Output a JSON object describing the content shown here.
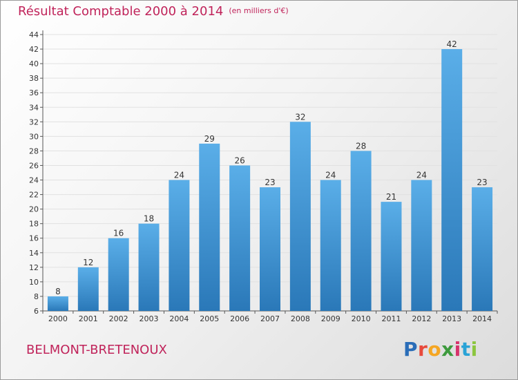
{
  "header": {
    "title": "Résultat Comptable 2000 à 2014",
    "subtitle": "(en milliers d'€)"
  },
  "footer": {
    "commune": "BELMONT-BRETENOUX",
    "logo": [
      "P",
      "r",
      "o",
      "x",
      "i",
      "t",
      "i"
    ]
  },
  "colors": {
    "bar_top": "#5aaee8",
    "bar_bottom": "#2a78b8",
    "title": "#c0235a"
  },
  "chart_data": {
    "type": "bar",
    "title": "Résultat Comptable 2000 à 2014",
    "xlabel": "",
    "ylabel": "",
    "categories": [
      "2000",
      "2001",
      "2002",
      "2003",
      "2004",
      "2005",
      "2006",
      "2007",
      "2008",
      "2009",
      "2010",
      "2011",
      "2012",
      "2013",
      "2014"
    ],
    "values": [
      8,
      12,
      16,
      18,
      24,
      29,
      26,
      23,
      32,
      24,
      28,
      21,
      24,
      42,
      23
    ],
    "ylim": [
      6,
      44
    ],
    "yticks": [
      6,
      8,
      10,
      12,
      14,
      16,
      18,
      20,
      22,
      24,
      26,
      28,
      30,
      32,
      34,
      36,
      38,
      40,
      42,
      44
    ],
    "grid": true
  }
}
